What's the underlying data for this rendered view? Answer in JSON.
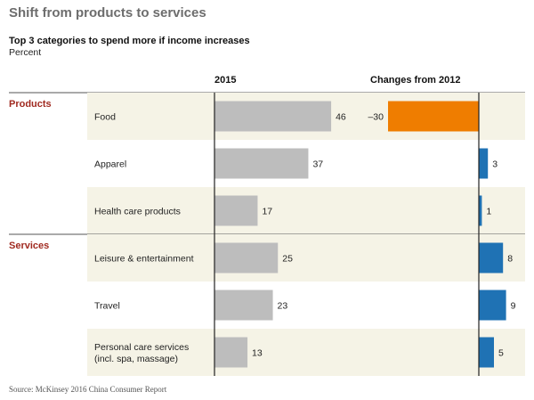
{
  "header": {
    "title": "Shift from products to services",
    "subtitle": "Top 3 categories to spend more if income increases",
    "unit": "Percent"
  },
  "footer": {
    "source": "Source: McKinsey 2016 China Consumer Report"
  },
  "colors": {
    "bar_2015": "#bdbdbd",
    "change_positive": "#1f72b4",
    "change_negative": "#ef7d00",
    "group_label": "#a02a20",
    "row_shade": "#f5f3e6"
  },
  "chart_data": {
    "type": "bar",
    "column_headers": [
      "2015",
      "Changes from 2012"
    ],
    "groups": [
      {
        "name": "Products",
        "rows": [
          {
            "label": [
              "Food"
            ],
            "value_2015": 46,
            "change": -30,
            "change_label": "–30"
          },
          {
            "label": [
              "Apparel"
            ],
            "value_2015": 37,
            "change": 3,
            "change_label": "3"
          },
          {
            "label": [
              "Health care products"
            ],
            "value_2015": 17,
            "change": 1,
            "change_label": "1"
          }
        ]
      },
      {
        "name": "Services",
        "rows": [
          {
            "label": [
              "Leisure & entertainment"
            ],
            "value_2015": 25,
            "change": 8,
            "change_label": "8"
          },
          {
            "label": [
              "Travel"
            ],
            "value_2015": 23,
            "change": 9,
            "change_label": "9"
          },
          {
            "label": [
              "Personal care services",
              "(incl. spa, massage)"
            ],
            "value_2015": 13,
            "change": 5,
            "change_label": "5"
          }
        ]
      }
    ]
  }
}
